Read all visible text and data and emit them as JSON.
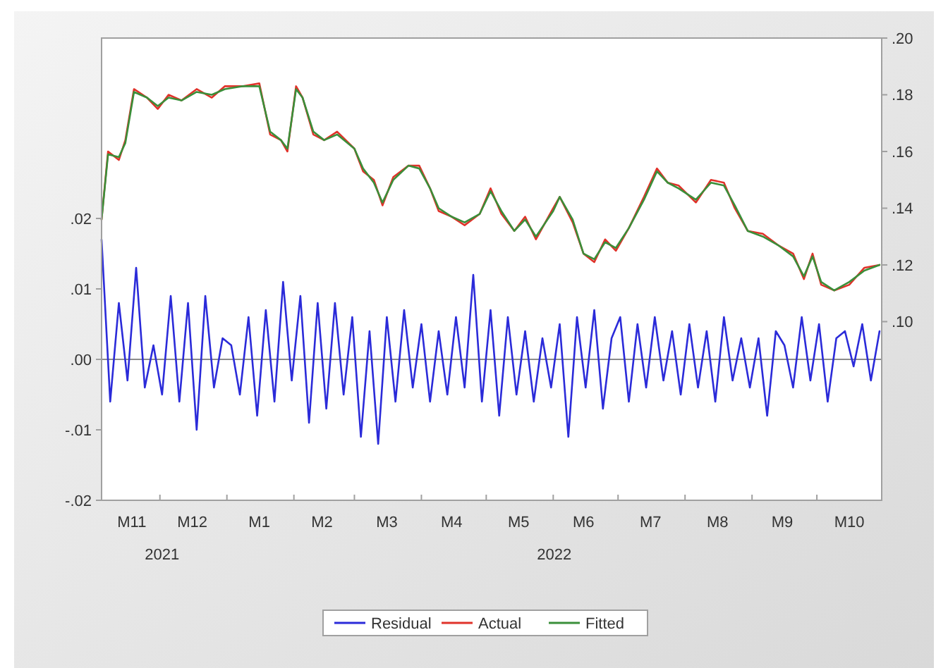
{
  "chart_data": {
    "type": "line",
    "xlim": [
      "2021-11-04",
      "2022-10-31"
    ],
    "xticks": [
      {
        "value": "2021-11-18",
        "label": "M11"
      },
      {
        "value": "2021-12-16",
        "label": "M12"
      },
      {
        "value": "2022-01-16",
        "label": "M1"
      },
      {
        "value": "2022-02-14",
        "label": "M2"
      },
      {
        "value": "2022-03-16",
        "label": "M3"
      },
      {
        "value": "2022-04-15",
        "label": "M4"
      },
      {
        "value": "2022-05-16",
        "label": "M5"
      },
      {
        "value": "2022-06-15",
        "label": "M6"
      },
      {
        "value": "2022-07-16",
        "label": "M7"
      },
      {
        "value": "2022-08-16",
        "label": "M8"
      },
      {
        "value": "2022-09-15",
        "label": "M9"
      },
      {
        "value": "2022-10-16",
        "label": "M10"
      },
      {
        "value": "2021-12-01",
        "label": null
      },
      {
        "value": "2022-01-01",
        "label": null
      },
      {
        "value": "2022-02-01",
        "label": null
      },
      {
        "value": "2022-03-01",
        "label": null
      },
      {
        "value": "2022-04-01",
        "label": null
      },
      {
        "value": "2022-05-01",
        "label": null
      },
      {
        "value": "2022-06-01",
        "label": null
      },
      {
        "value": "2022-07-01",
        "label": null
      },
      {
        "value": "2022-08-01",
        "label": null
      },
      {
        "value": "2022-09-01",
        "label": null
      },
      {
        "value": "2022-10-01",
        "label": null
      }
    ],
    "ylim": [
      -0.02,
      0.0456
    ],
    "yticks": [
      {
        "value": -0.02,
        "label": "-.02"
      },
      {
        "value": -0.01,
        "label": "-.01"
      },
      {
        "value": 0,
        "label": ".00"
      },
      {
        "value": 0.01,
        "label": ".01"
      },
      {
        "value": 0.02,
        "label": ".02"
      }
    ],
    "y2lim": [
      0.037,
      0.2
    ],
    "y2ticks": [
      {
        "value": 0.1,
        "label": ".10"
      },
      {
        "value": 0.12,
        "label": ".12"
      },
      {
        "value": 0.14,
        "label": ".14"
      },
      {
        "value": 0.16,
        "label": ".16"
      },
      {
        "value": 0.18,
        "label": ".18"
      },
      {
        "value": 0.2,
        "label": ".20"
      }
    ],
    "ref_lines": [
      {
        "axis": "y",
        "value": 0,
        "color": "#8c8c8c"
      }
    ],
    "annotations": [
      "2021",
      "2022"
    ],
    "legend": "bottom",
    "series": [
      {
        "name": "Residual",
        "color": "#2b2bd9",
        "axis": "y",
        "x": [
          "2021-11-04",
          "2021-11-08",
          "2021-11-12",
          "2021-11-16",
          "2021-11-20",
          "2021-11-24",
          "2021-11-28",
          "2021-12-02",
          "2021-12-06",
          "2021-12-10",
          "2021-12-14",
          "2021-12-18",
          "2021-12-22",
          "2021-12-26",
          "2021-12-30",
          "2022-01-03",
          "2022-01-07",
          "2022-01-11",
          "2022-01-15",
          "2022-01-19",
          "2022-01-23",
          "2022-01-27",
          "2022-01-31",
          "2022-02-04",
          "2022-02-08",
          "2022-02-12",
          "2022-02-16",
          "2022-02-20",
          "2022-02-24",
          "2022-02-28",
          "2022-03-04",
          "2022-03-08",
          "2022-03-12",
          "2022-03-16",
          "2022-03-20",
          "2022-03-24",
          "2022-03-28",
          "2022-04-01",
          "2022-04-05",
          "2022-04-09",
          "2022-04-13",
          "2022-04-17",
          "2022-04-21",
          "2022-04-25",
          "2022-04-29",
          "2022-05-03",
          "2022-05-07",
          "2022-05-11",
          "2022-05-15",
          "2022-05-19",
          "2022-05-23",
          "2022-05-27",
          "2022-05-31",
          "2022-06-04",
          "2022-06-08",
          "2022-06-12",
          "2022-06-16",
          "2022-06-20",
          "2022-06-24",
          "2022-06-28",
          "2022-07-02",
          "2022-07-06",
          "2022-07-10",
          "2022-07-14",
          "2022-07-18",
          "2022-07-22",
          "2022-07-26",
          "2022-07-30",
          "2022-08-03",
          "2022-08-07",
          "2022-08-11",
          "2022-08-15",
          "2022-08-19",
          "2022-08-23",
          "2022-08-27",
          "2022-08-31",
          "2022-09-04",
          "2022-09-08",
          "2022-09-12",
          "2022-09-16",
          "2022-09-20",
          "2022-09-24",
          "2022-09-28",
          "2022-10-02",
          "2022-10-06",
          "2022-10-10",
          "2022-10-14",
          "2022-10-18",
          "2022-10-22",
          "2022-10-26",
          "2022-10-30"
        ],
        "values": [
          0.017,
          -0.006,
          0.008,
          -0.003,
          0.013,
          -0.004,
          0.002,
          -0.005,
          0.009,
          -0.006,
          0.008,
          -0.01,
          0.009,
          -0.004,
          0.003,
          0.002,
          -0.005,
          0.006,
          -0.008,
          0.007,
          -0.006,
          0.011,
          -0.003,
          0.009,
          -0.009,
          0.008,
          -0.007,
          0.008,
          -0.005,
          0.006,
          -0.011,
          0.004,
          -0.012,
          0.006,
          -0.006,
          0.007,
          -0.004,
          0.005,
          -0.006,
          0.004,
          -0.005,
          0.006,
          -0.004,
          0.012,
          -0.006,
          0.007,
          -0.008,
          0.006,
          -0.005,
          0.004,
          -0.006,
          0.003,
          -0.004,
          0.005,
          -0.011,
          0.006,
          -0.004,
          0.007,
          -0.007,
          0.003,
          0.006,
          -0.006,
          0.005,
          -0.004,
          0.006,
          -0.003,
          0.004,
          -0.005,
          0.005,
          -0.004,
          0.004,
          -0.006,
          0.006,
          -0.003,
          0.003,
          -0.004,
          0.003,
          -0.008,
          0.004,
          0.002,
          -0.004,
          0.006,
          -0.003,
          0.005,
          -0.006,
          0.003,
          0.004,
          -0.001,
          0.005,
          -0.003,
          0.004
        ]
      },
      {
        "name": "Actual",
        "color": "#e0322a",
        "axis": "y2",
        "x": [
          "2021-11-04",
          "2021-11-07",
          "2021-11-12",
          "2021-11-15",
          "2021-11-19",
          "2021-11-25",
          "2021-11-30",
          "2021-12-05",
          "2021-12-11",
          "2021-12-18",
          "2021-12-25",
          "2021-12-31",
          "2022-01-08",
          "2022-01-16",
          "2022-01-21",
          "2022-01-26",
          "2022-01-29",
          "2022-02-02",
          "2022-02-05",
          "2022-02-10",
          "2022-02-15",
          "2022-02-21",
          "2022-03-01",
          "2022-03-05",
          "2022-03-10",
          "2022-03-14",
          "2022-03-19",
          "2022-03-26",
          "2022-03-31",
          "2022-04-05",
          "2022-04-09",
          "2022-04-15",
          "2022-04-21",
          "2022-04-28",
          "2022-05-03",
          "2022-05-08",
          "2022-05-14",
          "2022-05-19",
          "2022-05-24",
          "2022-06-01",
          "2022-06-04",
          "2022-06-10",
          "2022-06-15",
          "2022-06-20",
          "2022-06-25",
          "2022-06-30",
          "2022-07-06",
          "2022-07-13",
          "2022-07-19",
          "2022-07-24",
          "2022-07-29",
          "2022-08-06",
          "2022-08-13",
          "2022-08-19",
          "2022-08-24",
          "2022-08-30",
          "2022-09-06",
          "2022-09-13",
          "2022-09-20",
          "2022-09-25",
          "2022-09-29",
          "2022-10-03",
          "2022-10-09",
          "2022-10-16",
          "2022-10-23",
          "2022-10-30"
        ],
        "values": [
          0.136,
          0.16,
          0.157,
          0.164,
          0.182,
          0.179,
          0.175,
          0.18,
          0.178,
          0.182,
          0.179,
          0.183,
          0.183,
          0.184,
          0.166,
          0.164,
          0.16,
          0.183,
          0.179,
          0.166,
          0.164,
          0.167,
          0.161,
          0.153,
          0.15,
          0.141,
          0.151,
          0.155,
          0.155,
          0.147,
          0.139,
          0.137,
          0.134,
          0.138,
          0.147,
          0.138,
          0.132,
          0.137,
          0.129,
          0.14,
          0.144,
          0.135,
          0.124,
          0.121,
          0.129,
          0.125,
          0.133,
          0.144,
          0.154,
          0.149,
          0.148,
          0.142,
          0.15,
          0.149,
          0.14,
          0.132,
          0.131,
          0.127,
          0.124,
          0.115,
          0.124,
          0.113,
          0.111,
          0.113,
          0.119,
          0.12
        ]
      },
      {
        "name": "Fitted",
        "color": "#3a8f3a",
        "axis": "y2",
        "x": [
          "2021-11-04",
          "2021-11-07",
          "2021-11-12",
          "2021-11-15",
          "2021-11-19",
          "2021-11-25",
          "2021-11-30",
          "2021-12-05",
          "2021-12-11",
          "2021-12-18",
          "2021-12-25",
          "2021-12-31",
          "2022-01-08",
          "2022-01-16",
          "2022-01-21",
          "2022-01-26",
          "2022-01-29",
          "2022-02-02",
          "2022-02-05",
          "2022-02-10",
          "2022-02-15",
          "2022-02-21",
          "2022-03-01",
          "2022-03-05",
          "2022-03-10",
          "2022-03-14",
          "2022-03-19",
          "2022-03-26",
          "2022-03-31",
          "2022-04-05",
          "2022-04-09",
          "2022-04-15",
          "2022-04-21",
          "2022-04-28",
          "2022-05-03",
          "2022-05-08",
          "2022-05-14",
          "2022-05-19",
          "2022-05-24",
          "2022-06-01",
          "2022-06-04",
          "2022-06-10",
          "2022-06-15",
          "2022-06-20",
          "2022-06-25",
          "2022-06-30",
          "2022-07-06",
          "2022-07-13",
          "2022-07-19",
          "2022-07-24",
          "2022-07-29",
          "2022-08-06",
          "2022-08-13",
          "2022-08-19",
          "2022-08-24",
          "2022-08-30",
          "2022-09-06",
          "2022-09-13",
          "2022-09-20",
          "2022-09-25",
          "2022-09-29",
          "2022-10-03",
          "2022-10-09",
          "2022-10-16",
          "2022-10-23",
          "2022-10-30"
        ],
        "values": [
          0.136,
          0.159,
          0.158,
          0.163,
          0.181,
          0.179,
          0.176,
          0.179,
          0.178,
          0.181,
          0.18,
          0.182,
          0.183,
          0.183,
          0.167,
          0.164,
          0.161,
          0.182,
          0.179,
          0.167,
          0.164,
          0.166,
          0.161,
          0.154,
          0.149,
          0.142,
          0.15,
          0.155,
          0.154,
          0.147,
          0.14,
          0.137,
          0.135,
          0.138,
          0.146,
          0.139,
          0.132,
          0.136,
          0.13,
          0.139,
          0.144,
          0.136,
          0.124,
          0.122,
          0.128,
          0.126,
          0.133,
          0.143,
          0.153,
          0.149,
          0.147,
          0.143,
          0.149,
          0.148,
          0.141,
          0.132,
          0.13,
          0.127,
          0.123,
          0.116,
          0.123,
          0.114,
          0.111,
          0.114,
          0.118,
          0.12
        ]
      }
    ]
  }
}
